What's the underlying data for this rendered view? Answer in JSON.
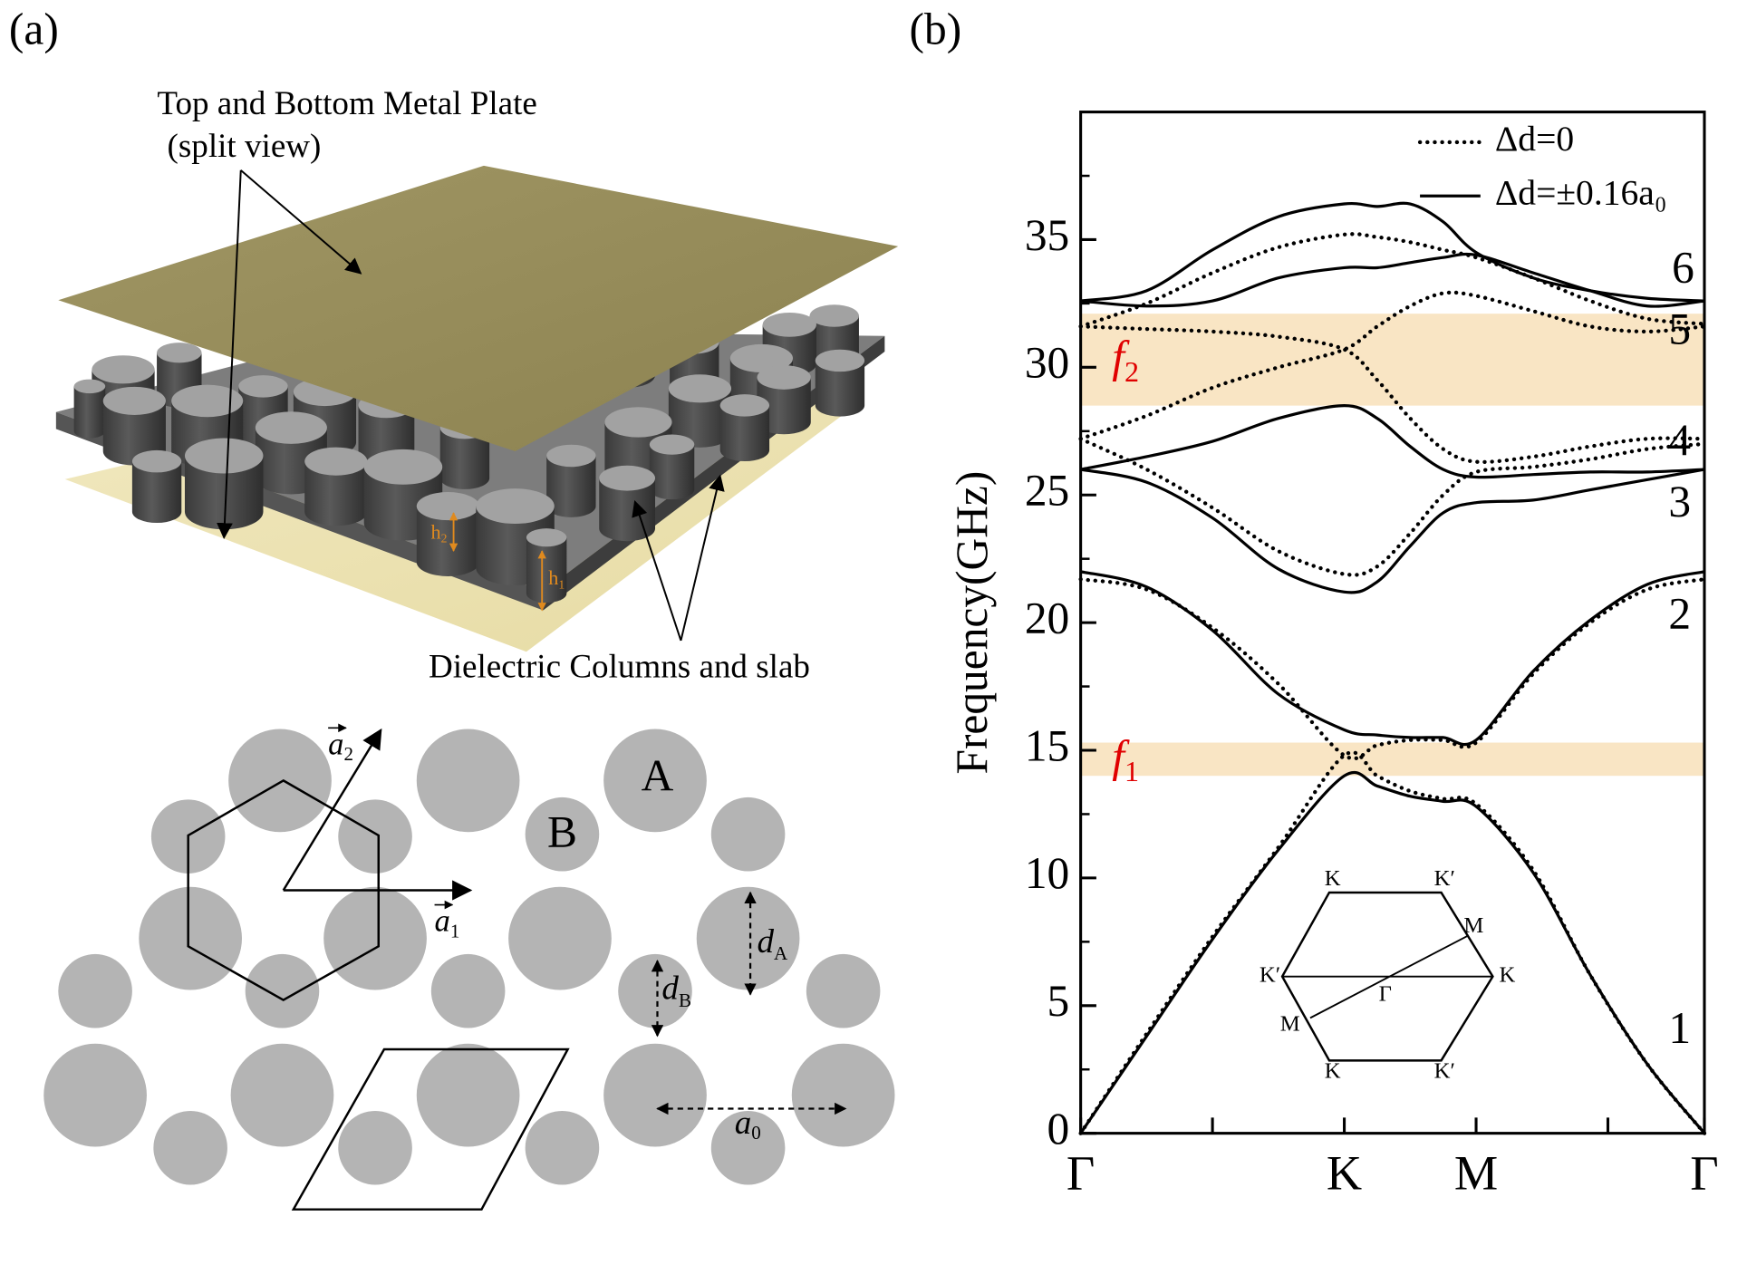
{
  "panel_a": {
    "label": "(a)",
    "plate_label": [
      "Top and Bottom Metal Plate",
      "(split view)"
    ],
    "columns_label": "Dielectric Columns and slab",
    "heights": [
      {
        "symbol": "h",
        "sub": "2"
      },
      {
        "symbol": "h",
        "sub": "1"
      }
    ],
    "sites": [
      "A",
      "B"
    ],
    "vectors": [
      {
        "symbol": "a",
        "sub": "1"
      },
      {
        "symbol": "a",
        "sub": "2"
      }
    ],
    "diameters": [
      {
        "symbol": "d",
        "sub": "A"
      },
      {
        "symbol": "d",
        "sub": "B"
      }
    ],
    "lattice_constant": {
      "symbol": "a",
      "sub": "0"
    }
  },
  "chart_data": {
    "type": "line",
    "label": "(b)",
    "y_label": "Frequency(GHz)",
    "x": [
      0,
      0.25,
      0.5,
      0.75,
      1,
      1.125,
      1.25,
      1.375,
      1.5,
      1.717,
      1.933,
      2.15,
      2.366
    ],
    "xlim": [
      0,
      2.366
    ],
    "xticks": [
      {
        "value": 0,
        "label": "Γ"
      },
      {
        "value": 1,
        "label": "K"
      },
      {
        "value": 1.5,
        "label": "M"
      },
      {
        "value": 2.366,
        "label": "Γ"
      }
    ],
    "xminorticks": [
      0.5,
      2
    ],
    "ylim": [
      0,
      40
    ],
    "yticks": [
      0,
      5,
      10,
      15,
      20,
      25,
      30,
      35
    ],
    "yminorticks": [
      2.5,
      7.5,
      12.5,
      17.5,
      22.5,
      27.5,
      32.5,
      37.5
    ],
    "legend": "upper right",
    "series": [
      {
        "name": "Δd=0",
        "color": "#000000",
        "line_style": "dotted",
        "curves": [
          [
            0,
            3.9,
            7.7,
            11.2,
            14.8,
            14.0,
            13.4,
            13.1,
            12.9,
            10.3,
            6.2,
            2.7,
            0
          ],
          [
            21.7,
            21.3,
            19.8,
            17.6,
            14.8,
            15.2,
            15.4,
            15.4,
            15.3,
            18.0,
            20.0,
            21.3,
            21.7
          ],
          [
            27.2,
            26.0,
            24.5,
            22.8,
            21.9,
            22.2,
            23.5,
            25.0,
            25.9,
            26.1,
            26.4,
            26.8,
            27.0
          ],
          [
            27.2,
            28.1,
            29.2,
            30.0,
            30.7,
            31.6,
            32.4,
            32.9,
            32.8,
            32.2,
            31.6,
            31.4,
            31.6
          ],
          [
            31.6,
            31.5,
            31.4,
            31.2,
            30.7,
            29.5,
            28.0,
            26.8,
            26.3,
            26.5,
            26.9,
            27.2,
            27.2
          ],
          [
            31.6,
            32.5,
            33.7,
            34.7,
            35.2,
            35.1,
            34.9,
            34.6,
            34.3,
            33.5,
            32.6,
            31.9,
            31.7
          ]
        ]
      },
      {
        "name": "Δd=±0.16a₀",
        "color": "#000000",
        "line_style": "solid",
        "curves": [
          [
            0,
            3.8,
            7.6,
            11.1,
            14.0,
            13.6,
            13.2,
            13.0,
            12.8,
            10.2,
            6.2,
            2.7,
            0
          ],
          [
            22.0,
            21.4,
            19.7,
            17.2,
            15.8,
            15.6,
            15.5,
            15.5,
            15.4,
            18.1,
            20.1,
            21.5,
            22.0
          ],
          [
            26.0,
            25.5,
            24.1,
            22.1,
            21.2,
            21.6,
            23.0,
            24.3,
            24.7,
            24.8,
            25.2,
            25.6,
            26.0
          ],
          [
            26.0,
            26.5,
            27.1,
            28.0,
            28.5,
            28.0,
            26.9,
            26.0,
            25.7,
            25.8,
            25.9,
            25.9,
            26.0
          ],
          [
            32.6,
            32.4,
            32.6,
            33.5,
            33.9,
            33.9,
            34.1,
            34.3,
            34.4,
            33.7,
            33.0,
            32.4,
            32.6
          ],
          [
            32.6,
            33.0,
            34.6,
            35.9,
            36.4,
            36.3,
            36.4,
            35.7,
            34.5,
            33.5,
            33.0,
            32.7,
            32.6
          ]
        ]
      }
    ],
    "highlight_bands": [
      {
        "symbol": "f",
        "sub": "1",
        "range": [
          14.0,
          15.3
        ],
        "color": "#f9e5c4"
      },
      {
        "symbol": "f",
        "sub": "2",
        "range": [
          28.5,
          32.1
        ],
        "color": "#f9e5c4"
      }
    ],
    "label_color": "#e00000",
    "band_labels": [
      "1",
      "2",
      "3",
      "4",
      "5",
      "6"
    ],
    "inset_labels": [
      "K",
      "K′",
      "M",
      "K′",
      "K",
      "Γ",
      "M",
      "K",
      "K′"
    ]
  }
}
